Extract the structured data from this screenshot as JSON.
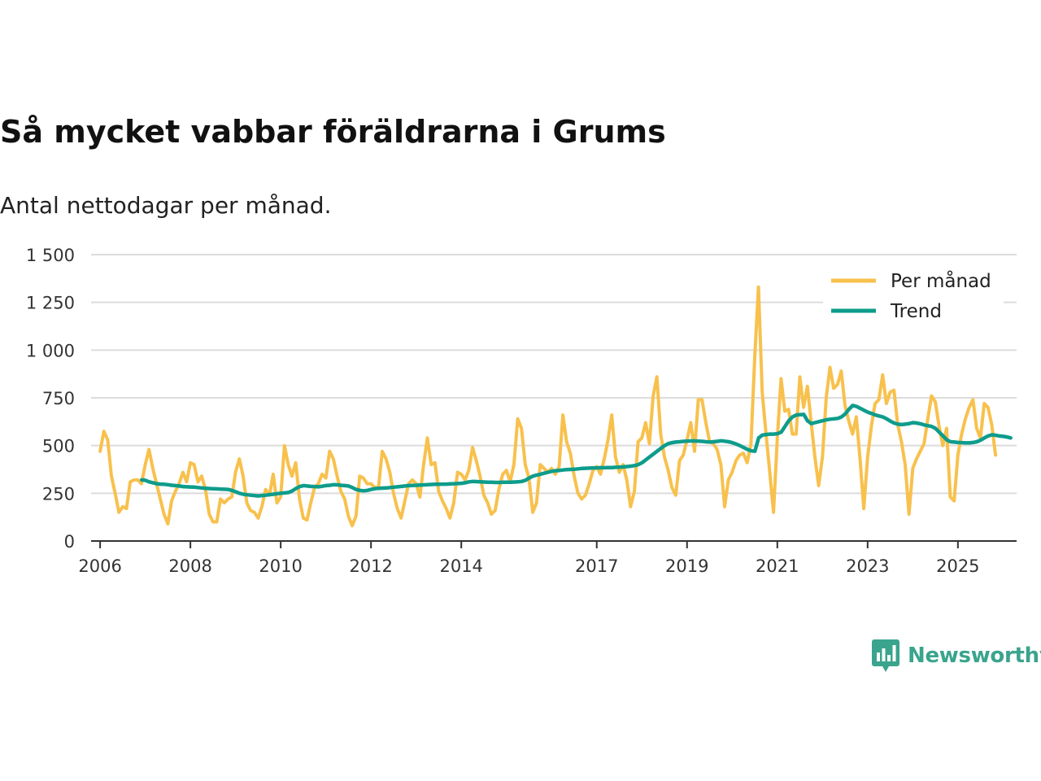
{
  "header": {
    "title": "Så mycket vabbar föräldrarna i Grums",
    "subtitle": "Antal nettodagar per månad."
  },
  "brand": {
    "name": "Newsworthy",
    "icon": "newsworthy-logo-icon",
    "color": "#3aa48d"
  },
  "colors": {
    "monthly": "#f8c14d",
    "trend": "#0e9c8b",
    "grid": "#dcdcdc",
    "axis": "#333333"
  },
  "chart_data": {
    "type": "line",
    "title": "Så mycket vabbar föräldrarna i Grums",
    "subtitle": "Antal nettodagar per månad.",
    "xlabel": "",
    "ylabel": "",
    "xlim": [
      2005.8,
      2026.3
    ],
    "ylim": [
      0,
      1500
    ],
    "y_ticks": [
      0,
      250,
      500,
      750,
      1000,
      1250,
      1500
    ],
    "y_tick_labels": [
      "0",
      "250",
      "500",
      "750",
      "1 000",
      "1 250",
      "1 500"
    ],
    "x_ticks": [
      2006,
      2008,
      2010,
      2012,
      2014,
      2017,
      2019,
      2021,
      2023,
      2025
    ],
    "x_tick_labels": [
      "2006",
      "2008",
      "2010",
      "2012",
      "2014",
      "2017",
      "2019",
      "2021",
      "2023",
      "2025"
    ],
    "grid": true,
    "legend": "top-right",
    "series": [
      {
        "name": "Per månad",
        "x_start": 2006.0,
        "x_step": 0.08333,
        "values": [
          470,
          575,
          530,
          340,
          250,
          150,
          180,
          170,
          310,
          320,
          320,
          300,
          400,
          480,
          380,
          300,
          220,
          140,
          90,
          210,
          260,
          300,
          360,
          310,
          410,
          400,
          310,
          340,
          270,
          140,
          100,
          100,
          220,
          200,
          220,
          230,
          360,
          430,
          340,
          200,
          160,
          150,
          120,
          180,
          270,
          240,
          350,
          200,
          230,
          500,
          400,
          340,
          410,
          220,
          120,
          110,
          200,
          280,
          300,
          350,
          330,
          470,
          430,
          340,
          260,
          220,
          130,
          80,
          130,
          340,
          330,
          300,
          300,
          280,
          280,
          470,
          430,
          360,
          250,
          170,
          120,
          210,
          300,
          320,
          300,
          230,
          400,
          540,
          400,
          410,
          260,
          210,
          170,
          120,
          200,
          360,
          350,
          320,
          370,
          490,
          420,
          340,
          240,
          200,
          140,
          160,
          270,
          350,
          370,
          310,
          400,
          640,
          590,
          400,
          330,
          150,
          200,
          400,
          380,
          360,
          380,
          350,
          390,
          660,
          520,
          460,
          340,
          250,
          220,
          240,
          300,
          370,
          390,
          350,
          430,
          530,
          660,
          440,
          360,
          400,
          320,
          180,
          260,
          520,
          540,
          620,
          510,
          760,
          860,
          560,
          440,
          370,
          280,
          240,
          420,
          450,
          530,
          620,
          470,
          740,
          740,
          620,
          520,
          510,
          480,
          400,
          180,
          320,
          360,
          420,
          450,
          460,
          410,
          510,
          960,
          1330,
          780,
          560,
          360,
          150,
          540,
          850,
          680,
          690,
          560,
          560,
          860,
          700,
          810,
          620,
          440,
          290,
          440,
          750,
          910,
          800,
          820,
          890,
          710,
          630,
          560,
          650,
          430,
          170,
          440,
          600,
          720,
          740,
          870,
          720,
          780,
          790,
          610,
          520,
          400,
          140,
          380,
          430,
          470,
          510,
          640,
          760,
          730,
          600,
          500,
          590,
          230,
          210,
          450,
          560,
          640,
          700,
          740,
          590,
          540,
          720,
          700,
          610,
          450
        ]
      },
      {
        "name": "Trend",
        "x_start": 2006.92,
        "x_step": 0.08333,
        "values": [
          320,
          318,
          310,
          305,
          300,
          298,
          297,
          295,
          292,
          290,
          288,
          285,
          284,
          283,
          282,
          280,
          278,
          276,
          275,
          274,
          273,
          272,
          271,
          270,
          265,
          258,
          250,
          245,
          242,
          240,
          238,
          236,
          238,
          240,
          243,
          245,
          248,
          250,
          252,
          254,
          262,
          275,
          285,
          290,
          288,
          286,
          285,
          284,
          287,
          290,
          292,
          295,
          294,
          292,
          290,
          288,
          280,
          270,
          265,
          263,
          265,
          270,
          274,
          276,
          277,
          278,
          280,
          282,
          284,
          286,
          288,
          290,
          291,
          292,
          293,
          294,
          295,
          296,
          297,
          297,
          298,
          298,
          299,
          300,
          301,
          302,
          305,
          310,
          312,
          311,
          310,
          309,
          308,
          308,
          307,
          307,
          308,
          308,
          308,
          309,
          310,
          312,
          318,
          330,
          340,
          345,
          350,
          355,
          360,
          365,
          368,
          370,
          372,
          374,
          375,
          376,
          378,
          380,
          381,
          382,
          383,
          383,
          384,
          384,
          385,
          385,
          386,
          387,
          388,
          390,
          392,
          395,
          400,
          410,
          425,
          440,
          455,
          470,
          485,
          500,
          510,
          515,
          518,
          520,
          522,
          523,
          524,
          524,
          523,
          522,
          520,
          518,
          520,
          522,
          525,
          523,
          520,
          515,
          508,
          500,
          490,
          480,
          472,
          470,
          540,
          555,
          558,
          560,
          560,
          562,
          570,
          600,
          630,
          650,
          660,
          662,
          663,
          630,
          615,
          620,
          625,
          630,
          635,
          638,
          640,
          642,
          650,
          665,
          690,
          710,
          705,
          695,
          685,
          675,
          668,
          660,
          655,
          650,
          640,
          628,
          618,
          612,
          610,
          612,
          615,
          620,
          618,
          614,
          608,
          604,
          600,
          590,
          570,
          550,
          530,
          520,
          518,
          516,
          515,
          514,
          514,
          516,
          520,
          528,
          540,
          550,
          556,
          554,
          550,
          548,
          545,
          540
        ]
      }
    ]
  }
}
